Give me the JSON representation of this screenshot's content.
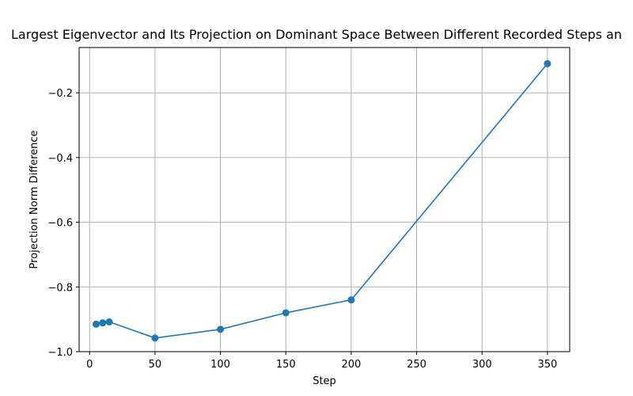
{
  "chart_data": {
    "type": "line",
    "title": "Largest Eigenvector and Its Projection on Dominant Space Between Different Recorded Steps an",
    "xlabel": "Step",
    "ylabel": "Projection Norm Difference",
    "xlim": [
      -8,
      367
    ],
    "ylim": [
      -1.0,
      -0.06
    ],
    "xticks": [
      0,
      50,
      100,
      150,
      200,
      250,
      300,
      350
    ],
    "xtick_labels": [
      "0",
      "50",
      "100",
      "150",
      "200",
      "250",
      "300",
      "350"
    ],
    "yticks": [
      -1.0,
      -0.8,
      -0.6,
      -0.4,
      -0.2
    ],
    "ytick_labels": [
      "−1.0",
      "−0.8",
      "−0.6",
      "−0.4",
      "−0.2"
    ],
    "grid": true,
    "series": [
      {
        "color": "#1f77b4",
        "marker": "circle",
        "x": [
          5,
          10,
          15,
          50,
          100,
          150,
          200,
          350
        ],
        "y": [
          -0.915,
          -0.911,
          -0.908,
          -0.958,
          -0.931,
          -0.88,
          -0.84,
          -0.11
        ]
      }
    ]
  }
}
